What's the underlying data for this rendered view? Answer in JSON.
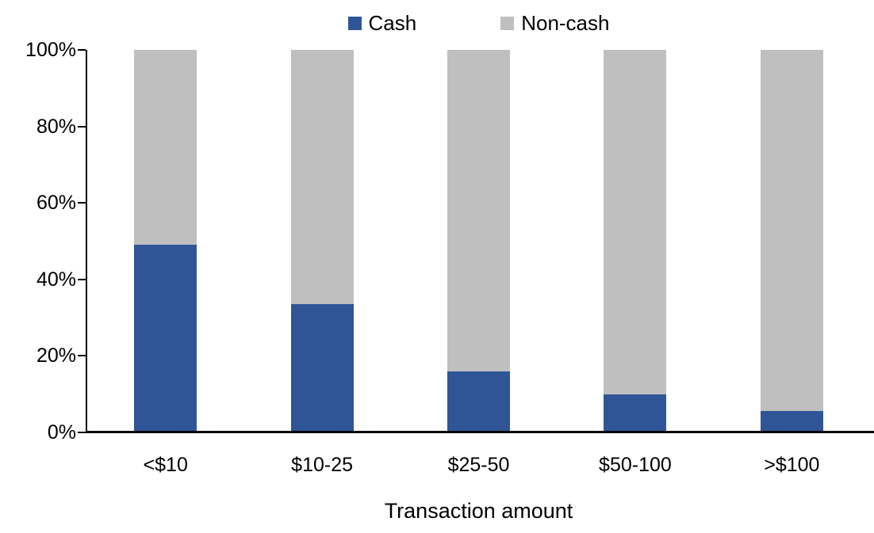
{
  "chart_data": {
    "type": "bar",
    "subtype": "stacked-100-percent",
    "title": "",
    "xlabel": "Transaction amount",
    "ylabel": "",
    "categories": [
      "<$10",
      "$10-25",
      "$25-50",
      "$50-100",
      ">$100"
    ],
    "series": [
      {
        "name": "Cash",
        "color": "#2F5597",
        "values": [
          49,
          33.5,
          16,
          10,
          5.5
        ]
      },
      {
        "name": "Non-cash",
        "color": "#BFBFBF",
        "values": [
          51,
          66.5,
          84,
          90,
          94.5
        ]
      }
    ],
    "ylim": [
      0,
      100
    ],
    "yticks": [
      {
        "value": 0,
        "label": "0%"
      },
      {
        "value": 20,
        "label": "20%"
      },
      {
        "value": 40,
        "label": "40%"
      },
      {
        "value": 60,
        "label": "60%"
      },
      {
        "value": 80,
        "label": "80%"
      },
      {
        "value": 100,
        "label": "100%"
      }
    ],
    "grid": false,
    "legend_position": "top-center",
    "axis_color": "#000000",
    "background_color": "#ffffff"
  }
}
